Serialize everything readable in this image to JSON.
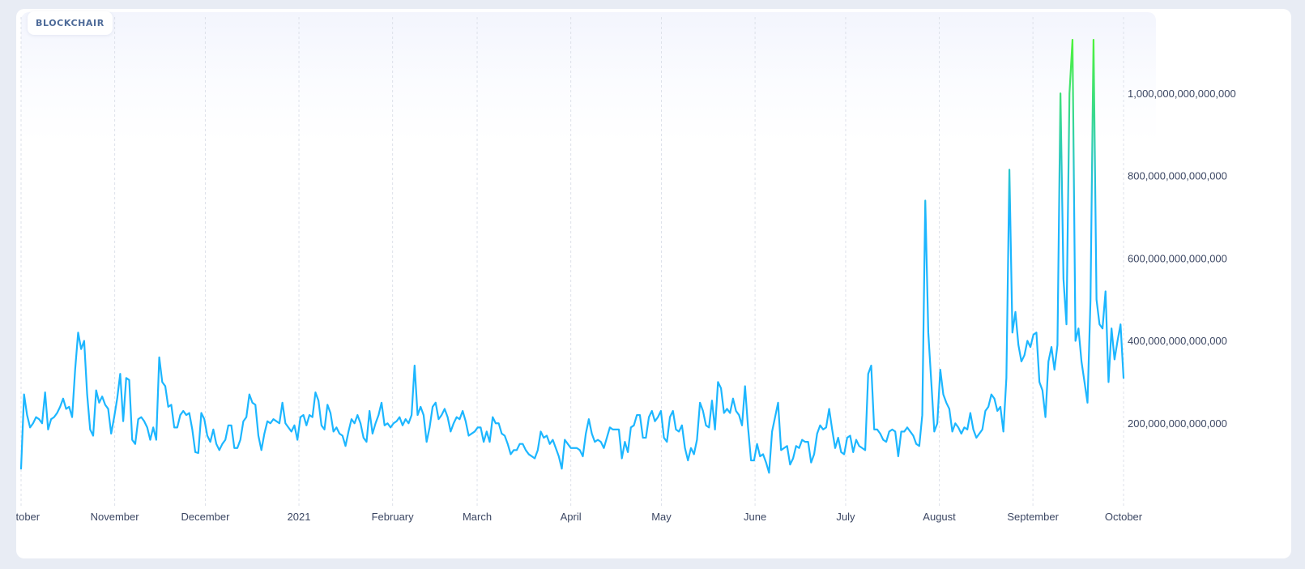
{
  "brand": {
    "name": "BLOCKCHAIR"
  },
  "colors": {
    "line_low": "#1cb6ff",
    "line_high": "#4df23d",
    "grid": "#dde1ea",
    "label": "#3c4763"
  },
  "chart_data": {
    "type": "line",
    "title": "",
    "xlabel": "",
    "ylabel": "",
    "grid": "vertical-dashed",
    "legend": "none",
    "yaxis_position": "right",
    "ylim": [
      0,
      1150000000000000
    ],
    "y_ticks": [
      {
        "value": 200000000000000,
        "label": "200,000,000,000,000"
      },
      {
        "value": 400000000000000,
        "label": "400,000,000,000,000"
      },
      {
        "value": 600000000000000,
        "label": "600,000,000,000,000"
      },
      {
        "value": 800000000000000,
        "label": "800,000,000,000,000"
      },
      {
        "value": 1000000000000000,
        "label": "1,000,000,000,000,000"
      }
    ],
    "x_range": [
      "2020-10-01",
      "2021-10-01"
    ],
    "x_ticks": [
      {
        "date": "2020-10-01",
        "label": "October"
      },
      {
        "date": "2020-11-01",
        "label": "November"
      },
      {
        "date": "2020-12-01",
        "label": "December"
      },
      {
        "date": "2021-01-01",
        "label": "2021"
      },
      {
        "date": "2021-02-01",
        "label": "February"
      },
      {
        "date": "2021-03-01",
        "label": "March"
      },
      {
        "date": "2021-04-01",
        "label": "April"
      },
      {
        "date": "2021-05-01",
        "label": "May"
      },
      {
        "date": "2021-06-01",
        "label": "June"
      },
      {
        "date": "2021-07-01",
        "label": "July"
      },
      {
        "date": "2021-08-01",
        "label": "August"
      },
      {
        "date": "2021-09-01",
        "label": "September"
      },
      {
        "date": "2021-10-01",
        "label": "October"
      }
    ],
    "series": [
      {
        "x_start": "2020-10-01",
        "x_step_days": 1,
        "values": [
          90000000000000,
          270000000000000,
          220000000000000,
          190000000000000,
          200000000000000,
          215000000000000,
          210000000000000,
          200000000000000,
          275000000000000,
          185000000000000,
          210000000000000,
          215000000000000,
          225000000000000,
          240000000000000,
          260000000000000,
          235000000000000,
          240000000000000,
          215000000000000,
          330000000000000,
          420000000000000,
          380000000000000,
          400000000000000,
          270000000000000,
          185000000000000,
          170000000000000,
          280000000000000,
          250000000000000,
          265000000000000,
          245000000000000,
          235000000000000,
          175000000000000,
          215000000000000,
          260000000000000,
          320000000000000,
          205000000000000,
          310000000000000,
          305000000000000,
          160000000000000,
          150000000000000,
          210000000000000,
          215000000000000,
          205000000000000,
          190000000000000,
          160000000000000,
          190000000000000,
          160000000000000,
          360000000000000,
          300000000000000,
          290000000000000,
          240000000000000,
          245000000000000,
          190000000000000,
          190000000000000,
          220000000000000,
          230000000000000,
          220000000000000,
          225000000000000,
          185000000000000,
          130000000000000,
          128000000000000,
          225000000000000,
          210000000000000,
          170000000000000,
          155000000000000,
          185000000000000,
          150000000000000,
          135000000000000,
          150000000000000,
          160000000000000,
          195000000000000,
          195000000000000,
          140000000000000,
          140000000000000,
          160000000000000,
          205000000000000,
          215000000000000,
          270000000000000,
          250000000000000,
          245000000000000,
          170000000000000,
          135000000000000,
          175000000000000,
          205000000000000,
          200000000000000,
          210000000000000,
          205000000000000,
          200000000000000,
          250000000000000,
          200000000000000,
          190000000000000,
          180000000000000,
          195000000000000,
          160000000000000,
          215000000000000,
          220000000000000,
          195000000000000,
          220000000000000,
          215000000000000,
          275000000000000,
          255000000000000,
          195000000000000,
          185000000000000,
          245000000000000,
          225000000000000,
          180000000000000,
          190000000000000,
          175000000000000,
          170000000000000,
          145000000000000,
          180000000000000,
          210000000000000,
          200000000000000,
          220000000000000,
          200000000000000,
          165000000000000,
          155000000000000,
          230000000000000,
          175000000000000,
          200000000000000,
          220000000000000,
          250000000000000,
          195000000000000,
          200000000000000,
          190000000000000,
          200000000000000,
          205000000000000,
          215000000000000,
          195000000000000,
          210000000000000,
          200000000000000,
          220000000000000,
          340000000000000,
          220000000000000,
          240000000000000,
          220000000000000,
          155000000000000,
          190000000000000,
          240000000000000,
          250000000000000,
          210000000000000,
          220000000000000,
          235000000000000,
          215000000000000,
          180000000000000,
          200000000000000,
          215000000000000,
          210000000000000,
          230000000000000,
          205000000000000,
          170000000000000,
          175000000000000,
          180000000000000,
          190000000000000,
          190000000000000,
          155000000000000,
          180000000000000,
          155000000000000,
          215000000000000,
          200000000000000,
          200000000000000,
          175000000000000,
          170000000000000,
          150000000000000,
          125000000000000,
          135000000000000,
          135000000000000,
          150000000000000,
          150000000000000,
          135000000000000,
          125000000000000,
          120000000000000,
          115000000000000,
          135000000000000,
          180000000000000,
          165000000000000,
          170000000000000,
          150000000000000,
          160000000000000,
          140000000000000,
          120000000000000,
          90000000000000,
          160000000000000,
          150000000000000,
          140000000000000,
          140000000000000,
          140000000000000,
          135000000000000,
          120000000000000,
          175000000000000,
          210000000000000,
          175000000000000,
          155000000000000,
          160000000000000,
          155000000000000,
          140000000000000,
          165000000000000,
          190000000000000,
          185000000000000,
          185000000000000,
          185000000000000,
          115000000000000,
          155000000000000,
          130000000000000,
          190000000000000,
          195000000000000,
          220000000000000,
          220000000000000,
          165000000000000,
          165000000000000,
          215000000000000,
          230000000000000,
          205000000000000,
          215000000000000,
          230000000000000,
          165000000000000,
          155000000000000,
          215000000000000,
          230000000000000,
          185000000000000,
          180000000000000,
          195000000000000,
          140000000000000,
          110000000000000,
          140000000000000,
          125000000000000,
          160000000000000,
          250000000000000,
          230000000000000,
          195000000000000,
          190000000000000,
          255000000000000,
          185000000000000,
          300000000000000,
          285000000000000,
          225000000000000,
          235000000000000,
          225000000000000,
          260000000000000,
          230000000000000,
          220000000000000,
          195000000000000,
          290000000000000,
          190000000000000,
          110000000000000,
          110000000000000,
          150000000000000,
          120000000000000,
          125000000000000,
          105000000000000,
          80000000000000,
          180000000000000,
          215000000000000,
          250000000000000,
          135000000000000,
          140000000000000,
          145000000000000,
          100000000000000,
          115000000000000,
          145000000000000,
          140000000000000,
          160000000000000,
          155000000000000,
          155000000000000,
          105000000000000,
          125000000000000,
          175000000000000,
          195000000000000,
          185000000000000,
          190000000000000,
          235000000000000,
          185000000000000,
          140000000000000,
          165000000000000,
          130000000000000,
          125000000000000,
          165000000000000,
          170000000000000,
          130000000000000,
          160000000000000,
          145000000000000,
          140000000000000,
          135000000000000,
          320000000000000,
          340000000000000,
          185000000000000,
          185000000000000,
          175000000000000,
          160000000000000,
          155000000000000,
          180000000000000,
          185000000000000,
          180000000000000,
          120000000000000,
          180000000000000,
          180000000000000,
          190000000000000,
          180000000000000,
          170000000000000,
          150000000000000,
          145000000000000,
          220000000000000,
          740000000000000,
          420000000000000,
          300000000000000,
          180000000000000,
          200000000000000,
          330000000000000,
          270000000000000,
          250000000000000,
          235000000000000,
          180000000000000,
          200000000000000,
          190000000000000,
          175000000000000,
          190000000000000,
          185000000000000,
          225000000000000,
          185000000000000,
          165000000000000,
          175000000000000,
          185000000000000,
          230000000000000,
          240000000000000,
          270000000000000,
          260000000000000,
          230000000000000,
          240000000000000,
          180000000000000,
          310000000000000,
          815000000000000,
          420000000000000,
          470000000000000,
          390000000000000,
          350000000000000,
          365000000000000,
          400000000000000,
          385000000000000,
          415000000000000,
          420000000000000,
          300000000000000,
          280000000000000,
          215000000000000,
          350000000000000,
          385000000000000,
          330000000000000,
          390000000000000,
          1000000000000000,
          550000000000000,
          440000000000000,
          1000000000000000,
          1130000000000000,
          400000000000000,
          430000000000000,
          350000000000000,
          300000000000000,
          250000000000000,
          500000000000000,
          1130000000000000,
          500000000000000,
          440000000000000,
          430000000000000,
          520000000000000,
          300000000000000,
          430000000000000,
          355000000000000,
          400000000000000,
          440000000000000,
          310000000000000
        ]
      }
    ]
  }
}
